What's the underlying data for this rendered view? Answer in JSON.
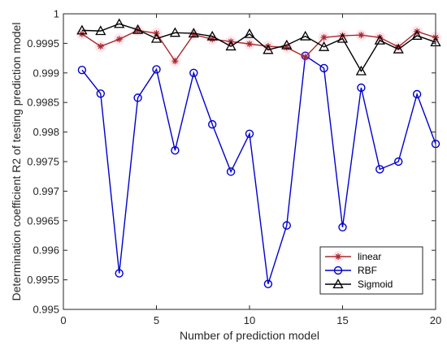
{
  "chart_data": {
    "type": "line",
    "title": "",
    "xlabel": "Number of prediction model",
    "ylabel": "Determination coefficient R2 of testing prediction model",
    "xlim": [
      0,
      20
    ],
    "ylim": [
      0.995,
      1
    ],
    "x_ticks": [
      "0",
      "5",
      "10",
      "15",
      "20"
    ],
    "y_ticks": [
      "0.995",
      "0.9955",
      "0.996",
      "0.9965",
      "0.997",
      "0.9975",
      "0.998",
      "0.9985",
      "0.999",
      "0.9995",
      "1"
    ],
    "grid": false,
    "legend_position": "bottom-right",
    "x": [
      1,
      2,
      3,
      4,
      5,
      6,
      7,
      8,
      9,
      10,
      11,
      12,
      13,
      14,
      15,
      16,
      17,
      18,
      19,
      20
    ],
    "series": [
      {
        "name": "linear",
        "color": "#a52a2a",
        "marker": "asterisk",
        "values": [
          0.99966,
          0.99945,
          0.99957,
          0.99972,
          0.99967,
          0.9992,
          0.99965,
          0.99957,
          0.99953,
          0.99949,
          0.99945,
          0.99943,
          0.99927,
          0.9996,
          0.99963,
          0.99964,
          0.9996,
          0.99944,
          0.9997,
          0.9996
        ]
      },
      {
        "name": "RBF",
        "color": "#0000cc",
        "marker": "circle",
        "values": [
          0.99905,
          0.99865,
          0.99561,
          0.99858,
          0.99906,
          0.99769,
          0.999,
          0.99813,
          0.99733,
          0.99797,
          0.99543,
          0.99642,
          0.99929,
          0.99908,
          0.99639,
          0.99875,
          0.99737,
          0.9975,
          0.99864,
          0.9978
        ]
      },
      {
        "name": "Sigmoid",
        "color": "#000000",
        "marker": "triangle",
        "values": [
          0.99972,
          0.99971,
          0.99983,
          0.99973,
          0.99958,
          0.99968,
          0.99967,
          0.99962,
          0.99945,
          0.99966,
          0.99939,
          0.99947,
          0.99962,
          0.99944,
          0.99958,
          0.99903,
          0.99955,
          0.9994,
          0.99963,
          0.99952
        ]
      }
    ]
  }
}
